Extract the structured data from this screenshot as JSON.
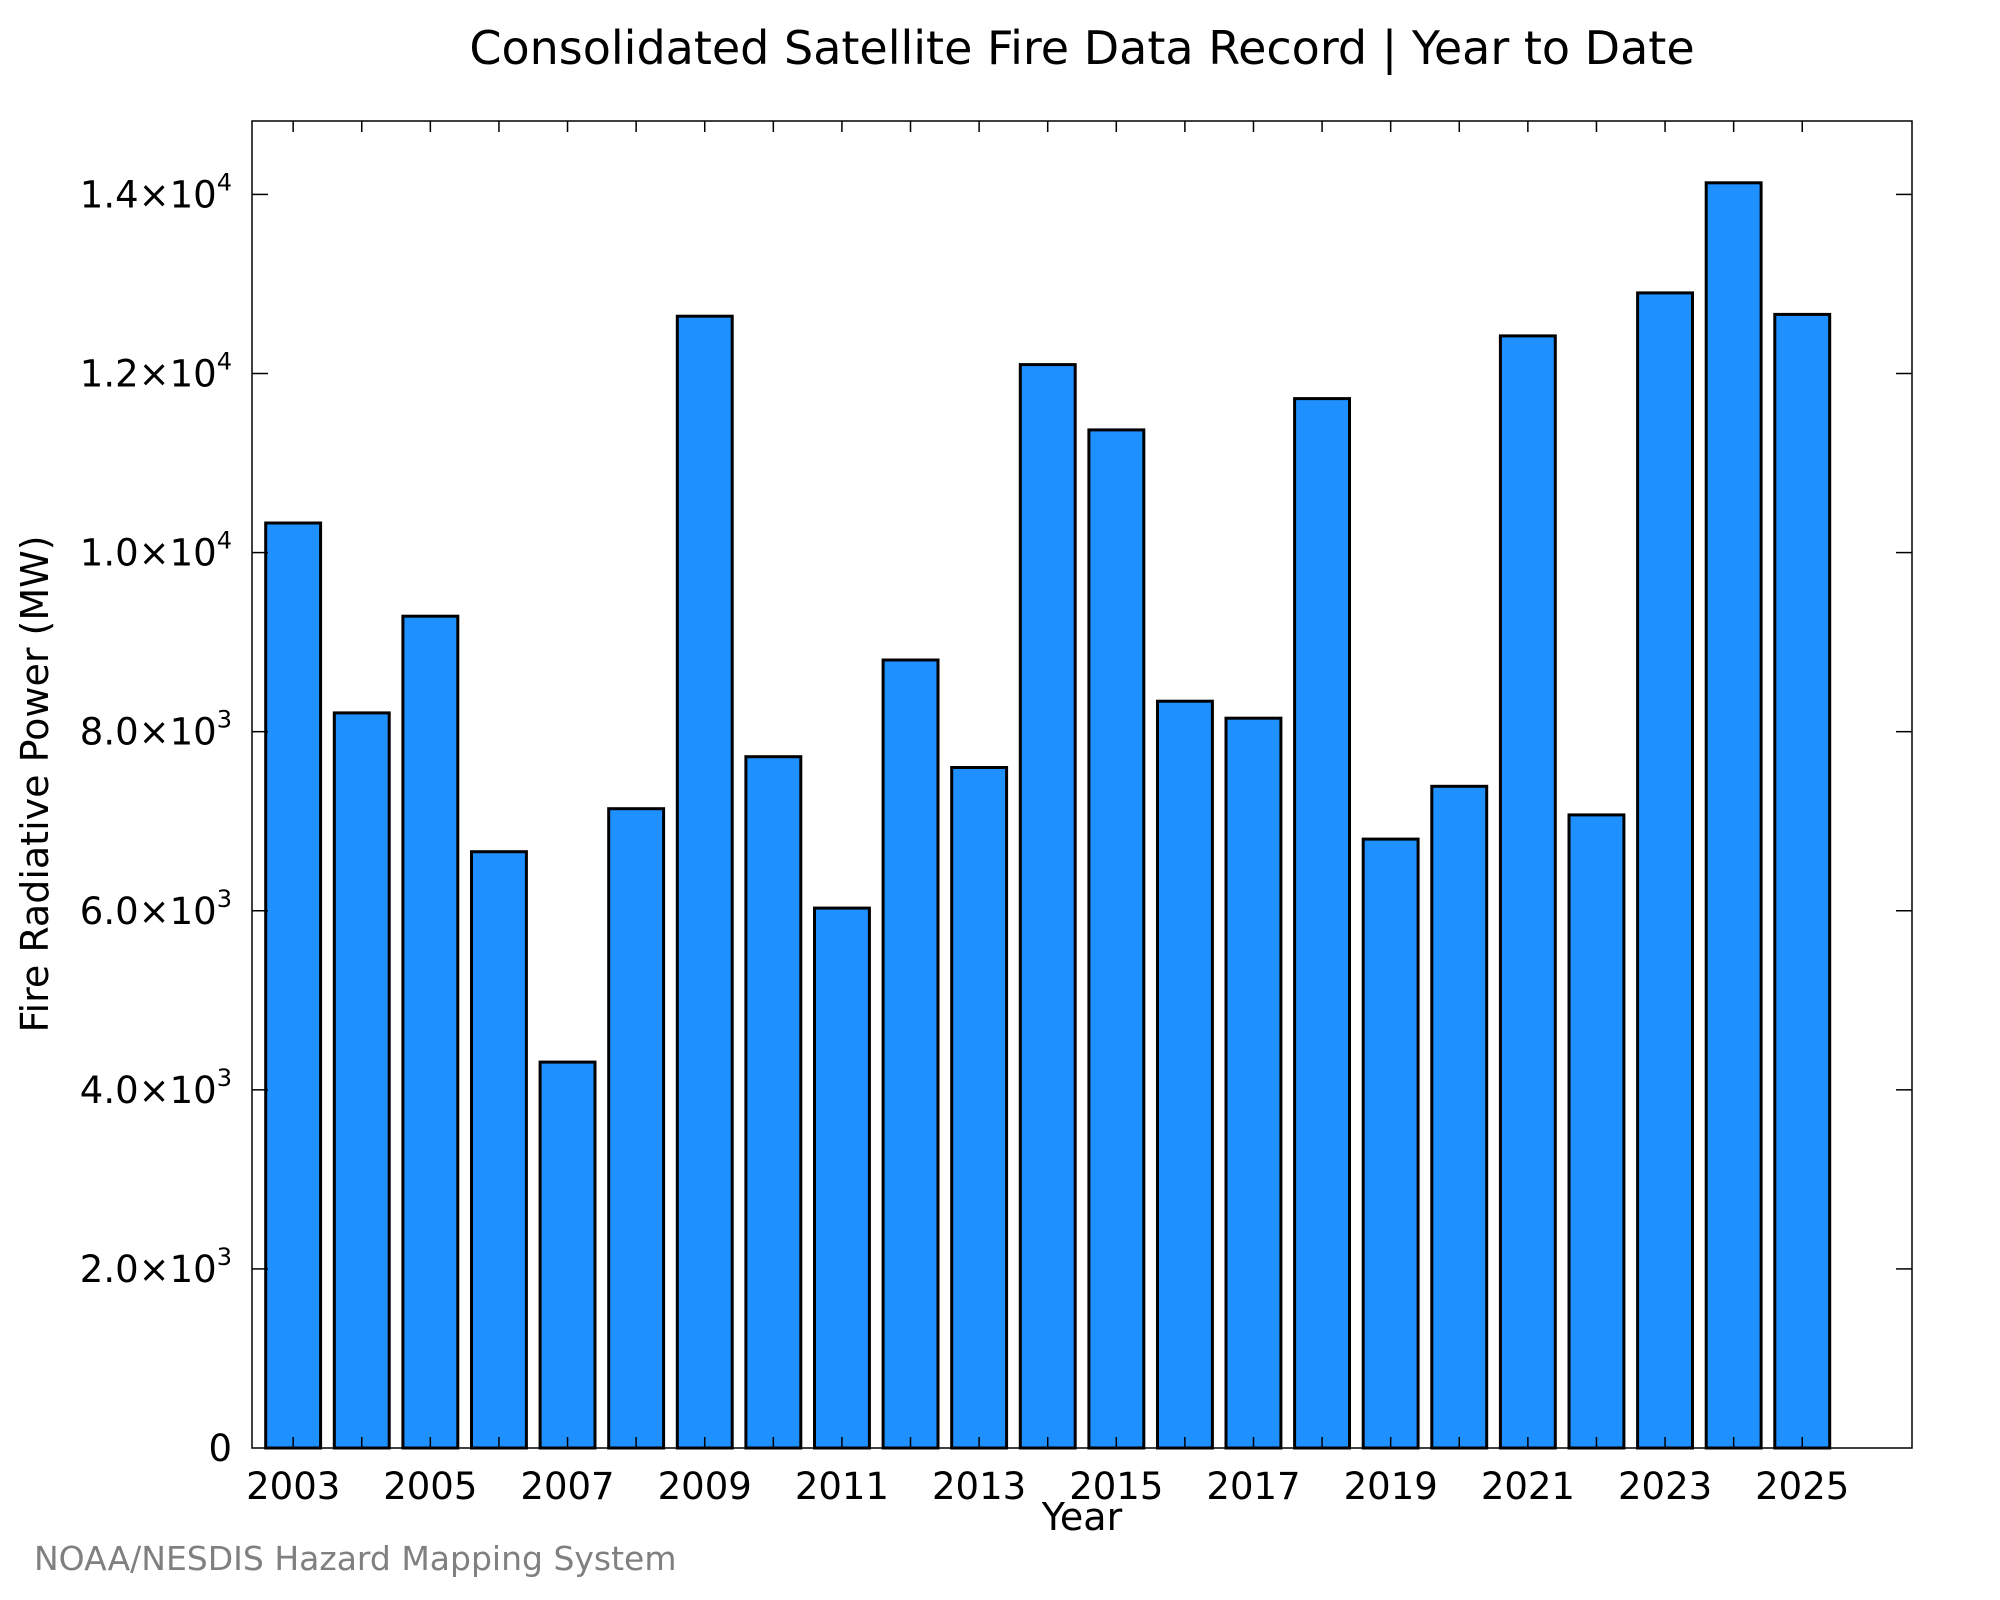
{
  "chart_data": {
    "type": "bar",
    "title": "Consolidated Satellite Fire Data Record | Year to Date",
    "xlabel": "Year",
    "ylabel": "Fire Radiative Power (MW)",
    "footer": "NOAA/NESDIS Hazard Mapping System",
    "categories": [
      "2003",
      "2004",
      "2005",
      "2006",
      "2007",
      "2008",
      "2009",
      "2010",
      "2011",
      "2012",
      "2013",
      "2014",
      "2015",
      "2016",
      "2017",
      "2018",
      "2019",
      "2020",
      "2021",
      "2022",
      "2023",
      "2024",
      "2025"
    ],
    "values": [
      10330,
      8210,
      9290,
      6660,
      4310,
      7140,
      12640,
      7720,
      6030,
      8800,
      7600,
      12100,
      11370,
      8340,
      8150,
      11720,
      6800,
      7390,
      12420,
      7070,
      12900,
      14130,
      12660
    ],
    "x_tick_labels": [
      "2003",
      "2005",
      "2007",
      "2009",
      "2011",
      "2013",
      "2015",
      "2017",
      "2019",
      "2021",
      "2023",
      "2025"
    ],
    "y_ticks": [
      {
        "value": 0,
        "mantissa": "0",
        "exponent": ""
      },
      {
        "value": 2000,
        "mantissa": "2.0×10",
        "exponent": "3"
      },
      {
        "value": 4000,
        "mantissa": "4.0×10",
        "exponent": "3"
      },
      {
        "value": 6000,
        "mantissa": "6.0×10",
        "exponent": "3"
      },
      {
        "value": 8000,
        "mantissa": "8.0×10",
        "exponent": "3"
      },
      {
        "value": 10000,
        "mantissa": "1.0×10",
        "exponent": "4"
      },
      {
        "value": 12000,
        "mantissa": "1.2×10",
        "exponent": "4"
      },
      {
        "value": 14000,
        "mantissa": "1.4×10",
        "exponent": "4"
      }
    ],
    "ylim": [
      0,
      14820
    ],
    "xlim": [
      2002.4,
      2026.6
    ],
    "grid": false,
    "legend": "none",
    "bar_color": "#1E90FF",
    "edge_color": "#000000"
  }
}
